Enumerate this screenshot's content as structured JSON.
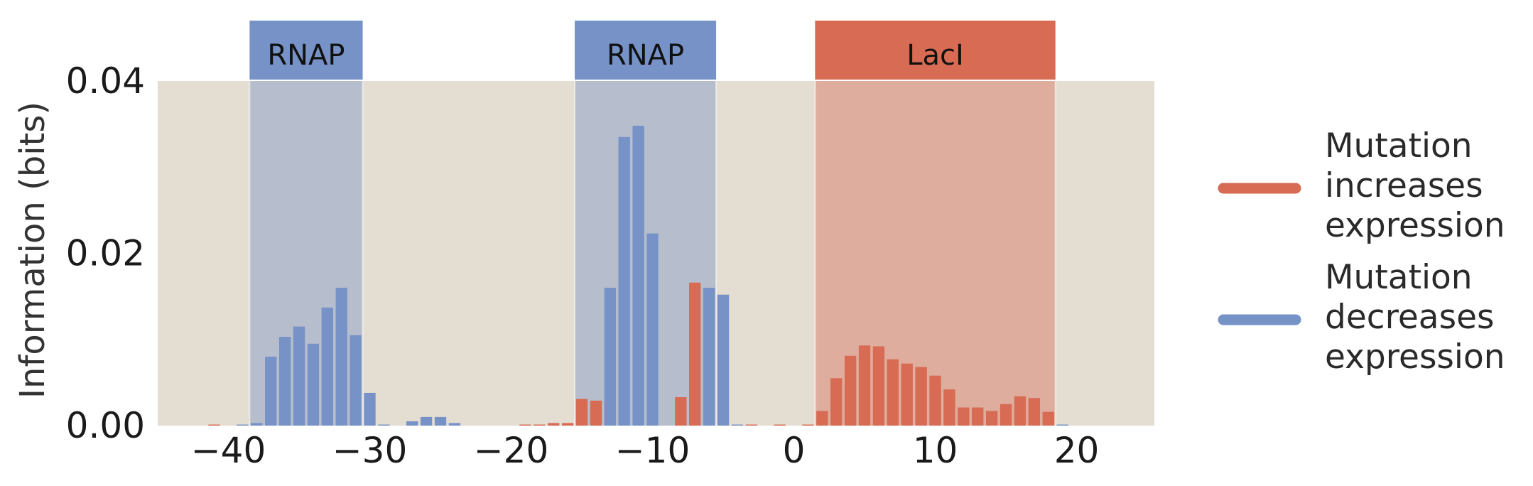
{
  "chart_data": {
    "type": "bar",
    "ylabel": "Information (bits)",
    "xlim": [
      -45,
      25.5
    ],
    "ylim": [
      0,
      0.04
    ],
    "xticks": [
      -40,
      -30,
      -20,
      -10,
      0,
      10,
      20
    ],
    "xtick_labels": [
      "−40",
      "−30",
      "−20",
      "−10",
      "0",
      "10",
      "20"
    ],
    "yticks": [
      0.0,
      0.02,
      0.04
    ],
    "ytick_labels": [
      "0.00",
      "0.02",
      "0.04"
    ],
    "background_color": "#e4ddd2",
    "colors": {
      "increase": "#d76b53",
      "decrease": "#7692c6"
    },
    "regions": [
      {
        "label": "RNAP",
        "start": -38.5,
        "end": -30.5,
        "color": "#7692c6"
      },
      {
        "label": "RNAP",
        "start": -15.5,
        "end": -5.5,
        "color": "#7692c6"
      },
      {
        "label": "LacI",
        "start": 1.5,
        "end": 18.5,
        "color": "#d76b53"
      }
    ],
    "series": [
      {
        "name": "Mutation increases expression",
        "color": "#d76b53",
        "points": [
          {
            "x": -41,
            "y": 0.0001
          },
          {
            "x": -19,
            "y": 0.0001
          },
          {
            "x": -18,
            "y": 0.0001
          },
          {
            "x": -17,
            "y": 0.0003
          },
          {
            "x": -16,
            "y": 0.0003
          },
          {
            "x": -15,
            "y": 0.0031
          },
          {
            "x": -14,
            "y": 0.0029
          },
          {
            "x": -8,
            "y": 0.0033
          },
          {
            "x": -7,
            "y": 0.0166
          },
          {
            "x": -3,
            "y": 0.0001
          },
          {
            "x": -1,
            "y": 0.0001
          },
          {
            "x": 1,
            "y": 0.0001
          },
          {
            "x": 2,
            "y": 0.0017
          },
          {
            "x": 3,
            "y": 0.0055
          },
          {
            "x": 4,
            "y": 0.0081
          },
          {
            "x": 5,
            "y": 0.0093
          },
          {
            "x": 6,
            "y": 0.0092
          },
          {
            "x": 7,
            "y": 0.0077
          },
          {
            "x": 8,
            "y": 0.0072
          },
          {
            "x": 9,
            "y": 0.0068
          },
          {
            "x": 10,
            "y": 0.0058
          },
          {
            "x": 11,
            "y": 0.0042
          },
          {
            "x": 12,
            "y": 0.0021
          },
          {
            "x": 13,
            "y": 0.0021
          },
          {
            "x": 14,
            "y": 0.0017
          },
          {
            "x": 15,
            "y": 0.0025
          },
          {
            "x": 16,
            "y": 0.0034
          },
          {
            "x": 17,
            "y": 0.0032
          },
          {
            "x": 18,
            "y": 0.0016
          }
        ]
      },
      {
        "name": "Mutation decreases expression",
        "color": "#7692c6",
        "points": [
          {
            "x": -39,
            "y": 0.0001
          },
          {
            "x": -38,
            "y": 0.0003
          },
          {
            "x": -37,
            "y": 0.008
          },
          {
            "x": -36,
            "y": 0.0103
          },
          {
            "x": -35,
            "y": 0.0115
          },
          {
            "x": -34,
            "y": 0.0095
          },
          {
            "x": -33,
            "y": 0.0137
          },
          {
            "x": -32,
            "y": 0.016
          },
          {
            "x": -31,
            "y": 0.0105
          },
          {
            "x": -30,
            "y": 0.0038
          },
          {
            "x": -29,
            "y": 0.0001
          },
          {
            "x": -27,
            "y": 0.0005
          },
          {
            "x": -26,
            "y": 0.001
          },
          {
            "x": -25,
            "y": 0.001
          },
          {
            "x": -24,
            "y": 0.0003
          },
          {
            "x": -13,
            "y": 0.016
          },
          {
            "x": -12,
            "y": 0.0335
          },
          {
            "x": -11,
            "y": 0.0348
          },
          {
            "x": -10,
            "y": 0.0223
          },
          {
            "x": -6,
            "y": 0.016
          },
          {
            "x": -5,
            "y": 0.0152
          },
          {
            "x": -4,
            "y": 0.0001
          },
          {
            "x": 19,
            "y": 0.0001
          }
        ]
      }
    ],
    "legend": {
      "placement": "right",
      "entries": [
        {
          "lines": [
            "Mutation",
            "increases",
            "expression"
          ],
          "color": "#d76b53"
        },
        {
          "lines": [
            "Mutation",
            "decreases",
            "expression"
          ],
          "color": "#7692c6"
        }
      ]
    }
  }
}
